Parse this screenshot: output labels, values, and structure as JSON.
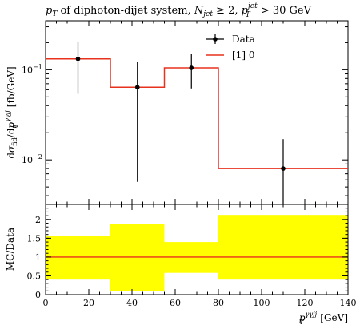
{
  "chart_data": [
    {
      "type": "line",
      "title": "p_T of diphoton-dijet system, N_jet ≥ 2, p_T^jet > 30 GeV",
      "title_parts": {
        "pT": "p",
        "pT_sub": "T",
        "text1": " of diphoton-dijet system, ",
        "N": "N",
        "N_sub": "jet",
        "text2": " ≥ 2, ",
        "p2": "p",
        "p2_sub": "T",
        "p2_sup": "jet",
        "text3": " > 30 GeV"
      },
      "ylabel": "dσ_fid/dp_T^γγjj [fb/GeV]",
      "ylabel_parts": {
        "d1": "d",
        "sigma": "σ",
        "fid": "fid",
        "slash": "/d",
        "p": "p",
        "T": "T",
        "sup": "γγjj",
        "unit": " [fb/GeV]"
      },
      "yscale": "log",
      "ylim": [
        0.0032,
        0.35
      ],
      "xlim": [
        0,
        140
      ],
      "y_ticks": [
        {
          "value": 0.1,
          "base": "10",
          "exp": "−1"
        },
        {
          "value": 0.01,
          "base": "10",
          "exp": "−2"
        }
      ],
      "legend_position": "top-right",
      "series": [
        {
          "name": "Data",
          "style": "points-with-errorbars",
          "color": "#000000",
          "points": [
            {
              "x": 15,
              "y": 0.132,
              "y_low": 0.054,
              "y_high": 0.205
            },
            {
              "x": 42.5,
              "y": 0.064,
              "y_low": 0.0057,
              "y_high": 0.121
            },
            {
              "x": 67.5,
              "y": 0.105,
              "y_low": 0.062,
              "y_high": 0.15
            },
            {
              "x": 110,
              "y": 0.008,
              "y_low": 0.0032,
              "y_high": 0.017
            }
          ]
        },
        {
          "name": "[1] 0",
          "style": "histogram",
          "color": "#e8321e",
          "bins": [
            {
              "x0": 0,
              "x1": 30,
              "y": 0.132
            },
            {
              "x0": 30,
              "x1": 55,
              "y": 0.064
            },
            {
              "x0": 55,
              "x1": 80,
              "y": 0.105
            },
            {
              "x0": 80,
              "x1": 140,
              "y": 0.008
            }
          ]
        }
      ]
    },
    {
      "type": "area",
      "ylabel": "MC/Data",
      "xlabel": "p_T^γγjj [GeV]",
      "xlabel_parts": {
        "p": "p",
        "T": "T",
        "sup": "γγjj",
        "unit": " [GeV]"
      },
      "xlim": [
        0,
        140
      ],
      "ylim": [
        0,
        2.4
      ],
      "x_ticks": [
        0,
        20,
        40,
        60,
        80,
        100,
        120,
        140
      ],
      "y_ticks": [
        0,
        0.5,
        1,
        1.5,
        2
      ],
      "y_tick_labels": [
        "0",
        "0.5",
        "1",
        "1.5",
        "2"
      ],
      "band_color": "#ffff00",
      "ratio_line": {
        "y": 1.0,
        "color": "#e8321e"
      },
      "bands": [
        {
          "x0": 0,
          "x1": 30,
          "low": 0.4,
          "high": 1.57
        },
        {
          "x0": 30,
          "x1": 55,
          "low": 0.09,
          "high": 1.88
        },
        {
          "x0": 55,
          "x1": 80,
          "low": 0.58,
          "high": 1.4
        },
        {
          "x0": 80,
          "x1": 140,
          "low": 0.4,
          "high": 2.12
        }
      ]
    }
  ]
}
